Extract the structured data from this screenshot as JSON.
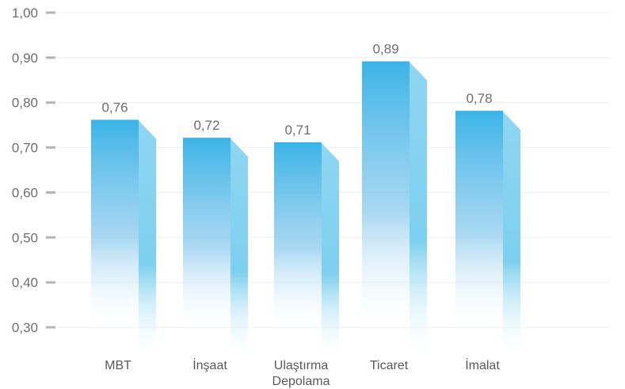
{
  "chart_data": {
    "type": "bar",
    "categories": [
      "MBT",
      "İnşaat",
      "Ulaştırma\nDepolama",
      "Ticaret",
      "İmalat"
    ],
    "values": [
      0.76,
      0.72,
      0.71,
      0.89,
      0.78
    ],
    "value_labels": [
      "0,76",
      "0,72",
      "0,71",
      "0,89",
      "0,78"
    ],
    "y_ticks": [
      1.0,
      0.9,
      0.8,
      0.7,
      0.6,
      0.5,
      0.4,
      0.3
    ],
    "y_tick_labels": [
      "1,00",
      "0,90",
      "0,80",
      "0,70",
      "0,60",
      "0,50",
      "0,40",
      "0,30"
    ],
    "ylim": [
      0.3,
      1.0
    ],
    "title": "",
    "xlabel": "",
    "ylabel": "",
    "grid": true,
    "colors": {
      "bar_top": "#3cb4e7",
      "bar_side": "#7fd0f0",
      "grid": "#eeeeee",
      "tick_mark": "#b5b5b5",
      "label": "#6d6e71"
    }
  }
}
